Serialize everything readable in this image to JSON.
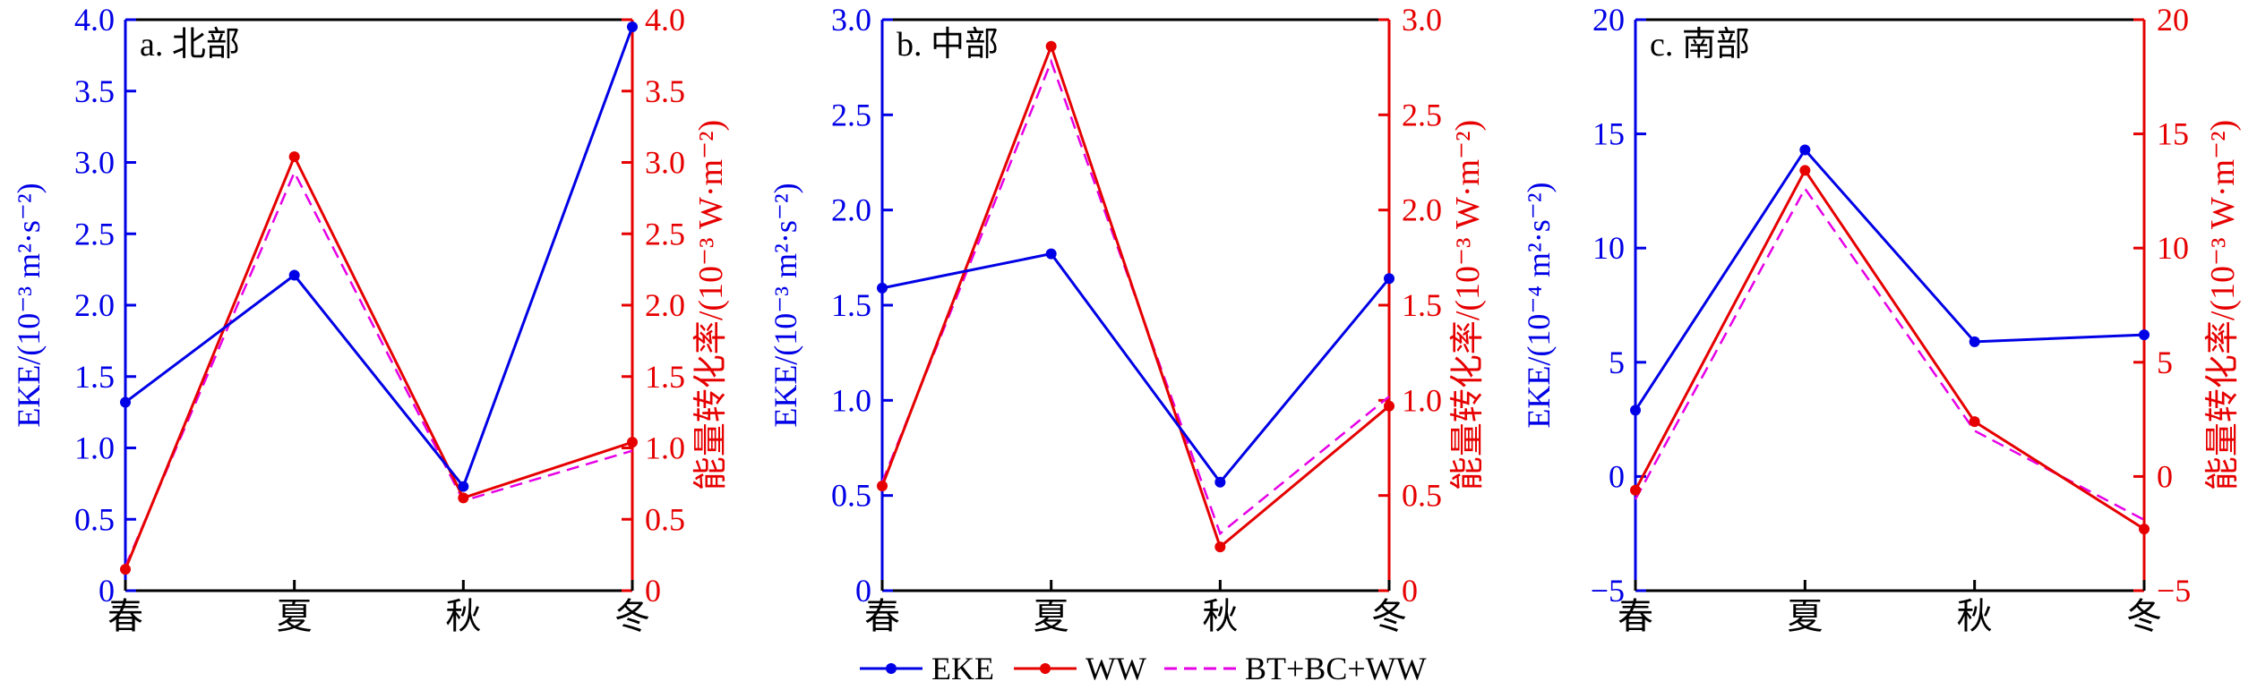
{
  "colors": {
    "EKE": "#0000e6",
    "WW": "#e60000",
    "BTBCWW": "#e600e6",
    "axis": "#000000"
  },
  "chart_data": [
    {
      "type": "line",
      "panel_label": "a. 北部",
      "categories": [
        "春",
        "夏",
        "秋",
        "冬"
      ],
      "ylabel_left": "EKE/(10⁻³ m²·s⁻²)",
      "ylabel_right": "能量转化率/(10⁻³ W·m⁻²)",
      "ylim_left": [
        0,
        4.0
      ],
      "ylim_right": [
        0,
        4.0
      ],
      "yticks_left": [
        "0",
        "0.5",
        "1.0",
        "1.5",
        "2.0",
        "2.5",
        "3.0",
        "3.5",
        "4.0"
      ],
      "yticks_right": [
        "0",
        "0.5",
        "1.0",
        "1.5",
        "2.0",
        "2.5",
        "3.0",
        "3.5",
        "4.0"
      ],
      "series": [
        {
          "name": "EKE",
          "axis": "left",
          "values": [
            1.32,
            2.21,
            0.73,
            3.95
          ]
        },
        {
          "name": "WW",
          "axis": "right",
          "values": [
            0.15,
            3.04,
            0.65,
            1.04
          ]
        },
        {
          "name": "BT+BC+WW",
          "axis": "right",
          "values": [
            0.17,
            2.93,
            0.63,
            0.98
          ]
        }
      ]
    },
    {
      "type": "line",
      "panel_label": "b. 中部",
      "categories": [
        "春",
        "夏",
        "秋",
        "冬"
      ],
      "ylabel_left": "EKE/(10⁻³ m²·s⁻²)",
      "ylabel_right": "能量转化率/(10⁻³ W·m⁻²)",
      "ylim_left": [
        0,
        3.0
      ],
      "ylim_right": [
        0,
        3.0
      ],
      "yticks_left": [
        "0",
        "0.5",
        "1.0",
        "1.5",
        "2.0",
        "2.5",
        "3.0"
      ],
      "yticks_right": [
        "0",
        "0.5",
        "1.0",
        "1.5",
        "2.0",
        "2.5",
        "3.0"
      ],
      "series": [
        {
          "name": "EKE",
          "axis": "left",
          "values": [
            1.59,
            1.77,
            0.57,
            1.64
          ]
        },
        {
          "name": "WW",
          "axis": "right",
          "values": [
            0.55,
            2.86,
            0.23,
            0.97
          ]
        },
        {
          "name": "BT+BC+WW",
          "axis": "right",
          "values": [
            0.57,
            2.78,
            0.3,
            1.02
          ]
        }
      ]
    },
    {
      "type": "line",
      "panel_label": "c. 南部",
      "categories": [
        "春",
        "夏",
        "秋",
        "冬"
      ],
      "ylabel_left": "EKE/(10⁻⁴ m²·s⁻²)",
      "ylabel_right": "能量转化率/(10⁻³ W·m⁻²)",
      "ylim_left": [
        -5,
        20
      ],
      "ylim_right": [
        -5,
        20
      ],
      "yticks_left": [
        "−5",
        "0",
        "5",
        "10",
        "15",
        "20"
      ],
      "yticks_right": [
        "−5",
        "0",
        "5",
        "10",
        "15",
        "20"
      ],
      "series": [
        {
          "name": "EKE",
          "axis": "left",
          "values": [
            2.9,
            14.3,
            5.9,
            6.2
          ]
        },
        {
          "name": "WW",
          "axis": "right",
          "values": [
            -0.6,
            13.4,
            2.4,
            -2.3
          ]
        },
        {
          "name": "BT+BC+WW",
          "axis": "right",
          "values": [
            -1.0,
            12.6,
            2.0,
            -1.9
          ]
        }
      ]
    }
  ],
  "legend": {
    "items": [
      {
        "label": "EKE",
        "series": "EKE"
      },
      {
        "label": "WW",
        "series": "WW"
      },
      {
        "label": "BT+BC+WW",
        "series": "BT+BC+WW"
      }
    ]
  }
}
